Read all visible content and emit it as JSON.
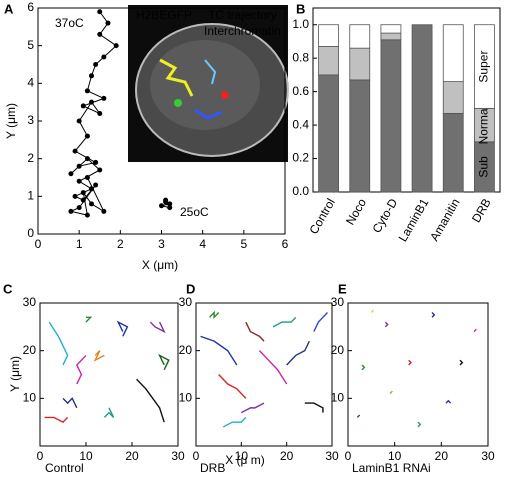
{
  "chart_data": [
    {
      "type": "line",
      "panel": "A",
      "xlabel": "X (μm)",
      "ylabel": "Y (μm)",
      "xlim": [
        0,
        6
      ],
      "ylim": [
        0,
        6
      ],
      "xticks": [
        0,
        1,
        2,
        3,
        4,
        5,
        6
      ],
      "yticks": [
        0,
        1,
        2,
        3,
        4,
        5,
        6
      ],
      "markers": true,
      "annotations": [
        "37oC",
        "25oC",
        "H2BEGFP",
        "TC trajectory",
        "Interchromatin"
      ],
      "series": [
        {
          "color": "#000000",
          "x": [
            1.5,
            1.7,
            1.5,
            1.9,
            1.6,
            1.4,
            1.3,
            1.2,
            1.6,
            1.1,
            1.5,
            1.3,
            1.0,
            1.2,
            0.9,
            1.4,
            1.0,
            0.8,
            1.2,
            1.5,
            1.0,
            1.3,
            0.9,
            1.1,
            1.4,
            1.0,
            0.8,
            1.2,
            1.1,
            1.3,
            1.6,
            1.2
          ],
          "y": [
            5.9,
            5.6,
            5.3,
            5.0,
            4.7,
            4.5,
            4.2,
            3.8,
            3.6,
            3.4,
            3.2,
            3.5,
            3.0,
            2.6,
            2.2,
            1.9,
            1.8,
            1.6,
            2.0,
            1.7,
            1.4,
            1.2,
            1.0,
            0.9,
            1.3,
            0.7,
            0.6,
            0.5,
            1.1,
            0.8,
            0.6,
            1.5
          ]
        },
        {
          "color": "#000000",
          "x": [
            3.1,
            3.2,
            3.0,
            3.2,
            3.1
          ],
          "y": [
            0.9,
            0.8,
            0.75,
            0.7,
            0.85
          ]
        }
      ]
    },
    {
      "type": "stacked_bar",
      "panel": "B",
      "categories": [
        "Control",
        "Noco",
        "Cyto-D",
        "LaminB1",
        "Amanitin",
        "DRB"
      ],
      "ylim": [
        0,
        1.1
      ],
      "yticks": [
        {
          "value": 0,
          "label": "0.0"
        },
        {
          "value": 0.2,
          "label": "0.2"
        },
        {
          "value": 0.4,
          "label": "0.4"
        },
        {
          "value": 0.6,
          "label": "0.6"
        },
        {
          "value": 0.8,
          "label": "0.8"
        },
        {
          "value": 1,
          "label": "1.0"
        }
      ],
      "series": [
        {
          "name": "Sub",
          "color": "#707070",
          "values": [
            0.7,
            0.67,
            0.91,
            1.0,
            0.47,
            0.3
          ]
        },
        {
          "name": "Normal",
          "color": "#c0c0c0",
          "values": [
            0.17,
            0.19,
            0.04,
            0,
            0.19,
            0.2
          ]
        },
        {
          "name": "Super",
          "color": "#ffffff",
          "values": [
            0.13,
            0.14,
            0.05,
            0,
            0.34,
            0.5
          ]
        }
      ]
    },
    {
      "type": "line",
      "panel": "C",
      "ylabel": "Y (μm)",
      "caption": "Control",
      "xlim": [
        0,
        30
      ],
      "ylim": [
        0,
        30
      ],
      "xticks": [
        0,
        10,
        20,
        30
      ],
      "yticks": [
        10,
        20,
        30
      ],
      "series": [
        {
          "color": "#22b0c8",
          "x": [
            2,
            4,
            6,
            5
          ],
          "y": [
            26,
            23,
            19,
            17
          ]
        },
        {
          "color": "#2233aa",
          "x": [
            18,
            17,
            19,
            18
          ],
          "y": [
            24,
            26,
            25,
            23
          ]
        },
        {
          "color": "#2a8a2a",
          "x": [
            10,
            11,
            10,
            11
          ],
          "y": [
            27,
            27,
            26,
            27
          ]
        },
        {
          "color": "#111111",
          "x": [
            21,
            23,
            26,
            27
          ],
          "y": [
            14,
            12,
            8,
            5
          ]
        },
        {
          "color": "#dd2222",
          "x": [
            1,
            3,
            5,
            6
          ],
          "y": [
            6,
            6,
            5,
            6
          ]
        },
        {
          "color": "#cc22aa",
          "x": [
            8,
            9,
            8,
            10
          ],
          "y": [
            13,
            15,
            17,
            19
          ]
        },
        {
          "color": "#7733aa",
          "x": [
            24,
            25,
            27,
            26
          ],
          "y": [
            26,
            25,
            24,
            26
          ]
        },
        {
          "color": "#229988",
          "x": [
            14,
            15,
            16,
            15
          ],
          "y": [
            6,
            7,
            6,
            8
          ]
        },
        {
          "color": "#dd8822",
          "x": [
            12,
            13,
            12,
            14
          ],
          "y": [
            19,
            20,
            18,
            19
          ]
        },
        {
          "color": "#116611",
          "x": [
            27,
            26,
            28,
            27
          ],
          "y": [
            17,
            19,
            18,
            16
          ]
        },
        {
          "color": "#223388",
          "x": [
            5,
            6,
            7,
            8
          ],
          "y": [
            10,
            9,
            10,
            8
          ]
        }
      ]
    },
    {
      "type": "line",
      "panel": "D",
      "xlabel": "X (μ m)",
      "caption": "DRB",
      "xlim": [
        0,
        30
      ],
      "ylim": [
        0,
        30
      ],
      "xticks": [
        0,
        10,
        20,
        30
      ],
      "yticks": [
        10,
        20,
        30
      ],
      "series": [
        {
          "color": "#2233aa",
          "x": [
            1,
            4,
            7,
            9
          ],
          "y": [
            23,
            22,
            20,
            17
          ]
        },
        {
          "color": "#111111",
          "x": [
            24,
            26,
            28,
            28
          ],
          "y": [
            9,
            9,
            8,
            7
          ]
        },
        {
          "color": "#3344cc",
          "x": [
            26,
            27,
            28,
            29
          ],
          "y": [
            24,
            26,
            27,
            28
          ]
        },
        {
          "color": "#cc22aa",
          "x": [
            14,
            16,
            18,
            20
          ],
          "y": [
            20,
            18,
            16,
            13
          ]
        },
        {
          "color": "#dd2222",
          "x": [
            5,
            7,
            9,
            11
          ],
          "y": [
            15,
            13,
            12,
            10
          ]
        },
        {
          "color": "#2a8a2a",
          "x": [
            3,
            4,
            4,
            5
          ],
          "y": [
            27,
            28,
            27,
            28
          ]
        },
        {
          "color": "#229988",
          "x": [
            17,
            19,
            21,
            22
          ],
          "y": [
            25,
            26,
            26,
            27
          ]
        },
        {
          "color": "#7733aa",
          "x": [
            10,
            12,
            13,
            15
          ],
          "y": [
            7,
            8,
            8,
            9
          ]
        },
        {
          "color": "#223388",
          "x": [
            20,
            22,
            24,
            25
          ],
          "y": [
            17,
            19,
            20,
            22
          ]
        },
        {
          "color": "#22b0c8",
          "x": [
            6,
            8,
            10,
            11
          ],
          "y": [
            4,
            5,
            5,
            6
          ]
        },
        {
          "color": "#992222",
          "x": [
            11,
            12,
            14,
            15
          ],
          "y": [
            26,
            24,
            23,
            22
          ]
        }
      ]
    },
    {
      "type": "line",
      "panel": "E",
      "caption": "LaminB1 RNAi",
      "xlim": [
        0,
        30
      ],
      "ylim": [
        0,
        30
      ],
      "xticks": [
        0,
        10,
        20,
        30
      ],
      "yticks": [
        10,
        20,
        30
      ],
      "series": [
        {
          "color": "#dd2222",
          "x": [
            13,
            13.5,
            13
          ],
          "y": [
            17,
            17.5,
            18
          ]
        },
        {
          "color": "#2a8a2a",
          "x": [
            3,
            3.5,
            3
          ],
          "y": [
            16,
            16.5,
            17
          ]
        },
        {
          "color": "#2233aa",
          "x": [
            21,
            21.5,
            22
          ],
          "y": [
            9,
            9.5,
            9
          ]
        },
        {
          "color": "#7733aa",
          "x": [
            8,
            8.5,
            8
          ],
          "y": [
            25,
            25.5,
            26
          ]
        },
        {
          "color": "#dddd22",
          "x": [
            5,
            5.5
          ],
          "y": [
            28,
            28.5
          ]
        },
        {
          "color": "#cc22aa",
          "x": [
            27,
            27.5,
            27
          ],
          "y": [
            24,
            24.5,
            24
          ]
        },
        {
          "color": "#229988",
          "x": [
            15,
            15.5,
            15
          ],
          "y": [
            4,
            4.5,
            5
          ]
        },
        {
          "color": "#111111",
          "x": [
            24,
            24.5,
            24
          ],
          "y": [
            17,
            17.5,
            18
          ]
        },
        {
          "color": "#dd8822",
          "x": [
            9,
            9.5,
            9
          ],
          "y": [
            11,
            11.5,
            11
          ]
        },
        {
          "color": "#223388",
          "x": [
            18,
            18.5,
            18
          ],
          "y": [
            27,
            27.5,
            28
          ]
        },
        {
          "color": "#116611",
          "x": [
            2,
            2.5,
            2
          ],
          "y": [
            6,
            6.5,
            6
          ]
        }
      ]
    }
  ]
}
